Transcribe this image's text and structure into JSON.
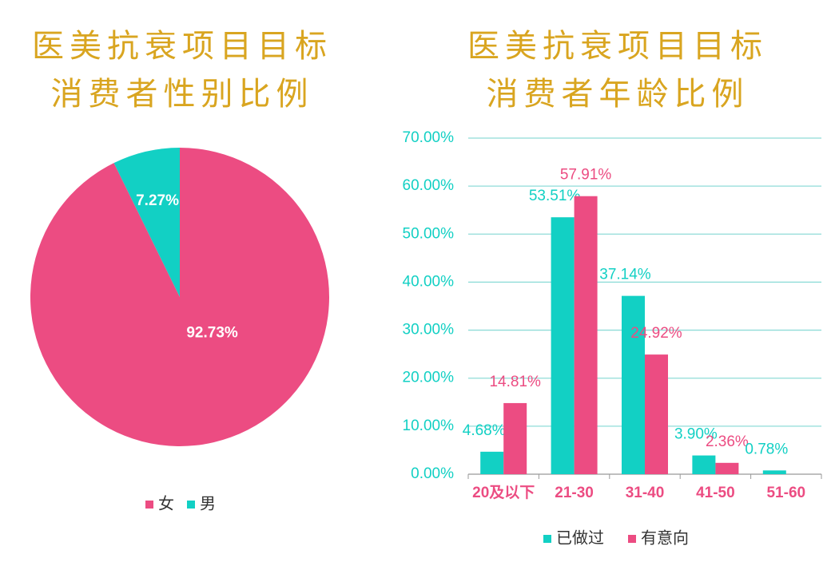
{
  "chart_data": [
    {
      "type": "pie",
      "title": "医美抗衰项目目标消费者性别比例",
      "categories": [
        "女",
        "男"
      ],
      "values": [
        92.73,
        7.27
      ],
      "value_labels": [
        "92.73%",
        "7.27%"
      ],
      "colors": [
        "#ec4c82",
        "#12d0c4"
      ],
      "legend": "bottom"
    },
    {
      "type": "bar",
      "title": "医美抗衰项目目标消费者年龄比例",
      "categories": [
        "20及以下",
        "21-30",
        "31-40",
        "41-50",
        "51-60"
      ],
      "series": [
        {
          "name": "已做过",
          "color": "#12d0c4",
          "values": [
            4.68,
            53.51,
            37.14,
            3.9,
            0.78
          ],
          "value_labels": [
            "4.68%",
            "53.51%",
            "37.14%",
            "3.90%",
            "0.78%"
          ]
        },
        {
          "name": "有意向",
          "color": "#ec4c82",
          "values": [
            14.81,
            57.91,
            24.92,
            2.36,
            null
          ],
          "value_labels": [
            "14.81%",
            "57.91%",
            "24.92%",
            "2.36%",
            null
          ]
        }
      ],
      "ylim": [
        0,
        70
      ],
      "yticks": [
        {
          "value": 0,
          "label": "0.00%"
        },
        {
          "value": 10,
          "label": "10.00%"
        },
        {
          "value": 20,
          "label": "20.00%"
        },
        {
          "value": 30,
          "label": "30.00%"
        },
        {
          "value": 40,
          "label": "40.00%"
        },
        {
          "value": 50,
          "label": "50.00%"
        },
        {
          "value": 60,
          "label": "60.00%"
        },
        {
          "value": 70,
          "label": "70.00%"
        }
      ],
      "grid": true,
      "legend": "bottom"
    }
  ]
}
